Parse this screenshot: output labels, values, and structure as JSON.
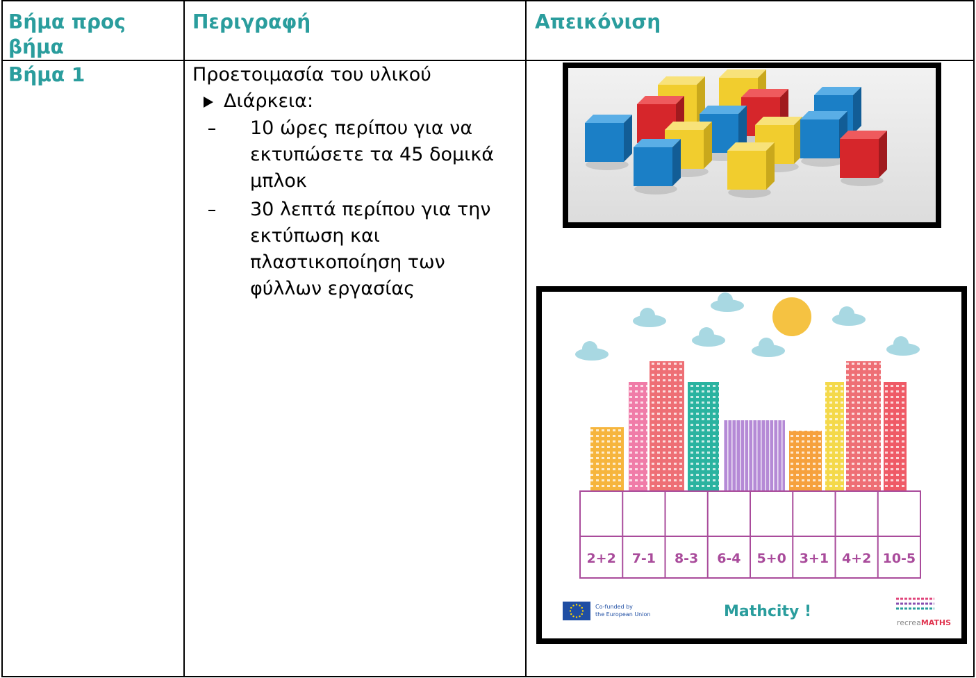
{
  "table": {
    "header": [
      "Βήμα προς βήμα",
      "Περιγραφή",
      "Απεικόνιση"
    ],
    "rows": [
      {
        "step": "Βήμα 1",
        "description": {
          "title": "Προετοιμασία του υλικού",
          "bullet": "Διάρκεια:",
          "items": [
            "10 ώρες περίπου για να εκτυπώσετε τα 45 δομικά μπλοκ",
            "30 λεπτά περίπου για την εκτύπωση και πλαστικοποίηση των φύλλων εργασίας"
          ]
        }
      }
    ]
  },
  "worksheet": {
    "expressions": [
      "2+2",
      "7-1",
      "8-3",
      "6-4",
      "5+0",
      "3+1",
      "4+2",
      "10-5"
    ],
    "title": "Mathcity !",
    "funding": [
      "Co-funded by",
      "the European Union"
    ],
    "logo": [
      "recrea",
      "MATHS"
    ]
  }
}
